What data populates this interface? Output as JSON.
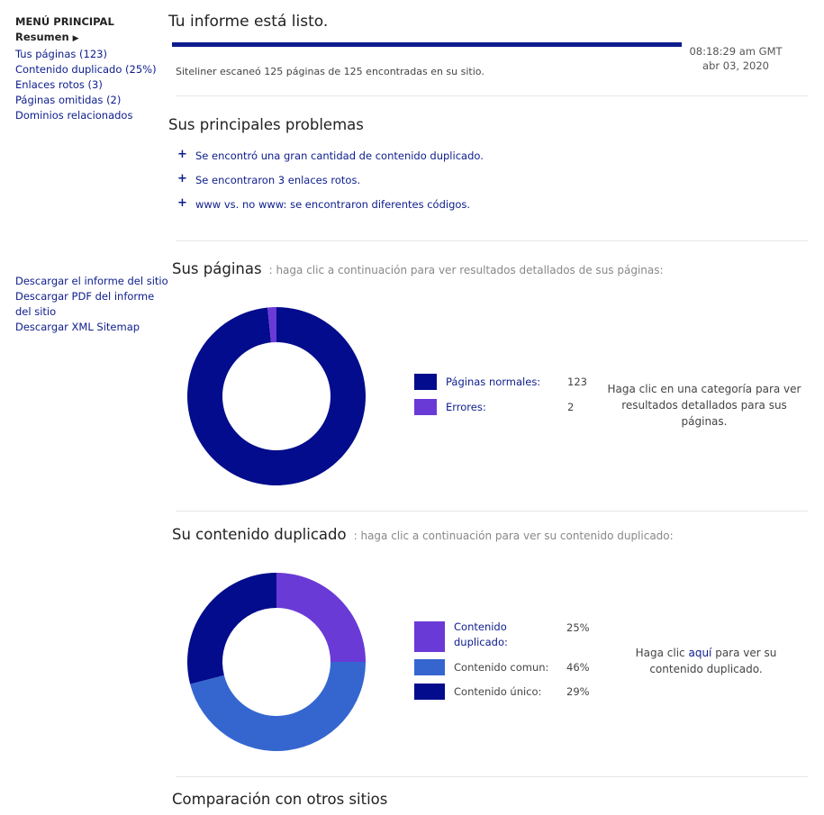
{
  "sidebar": {
    "menu_title": "MENÚ PRINCIPAL",
    "items": [
      {
        "label": "Resumen",
        "active": true
      },
      {
        "label": "Tus páginas (123)"
      },
      {
        "label": "Contenido duplicado (25%)"
      },
      {
        "label": "Enlaces rotos (3)"
      },
      {
        "label": "Páginas omitidas (2)"
      },
      {
        "label": "Dominios relacionados"
      }
    ],
    "downloads": [
      {
        "label": "Descargar el informe del sitio"
      },
      {
        "label": "Descargar PDF del informe del sitio"
      },
      {
        "label": "Descargar XML Sitemap"
      }
    ]
  },
  "report": {
    "title": "Tu informe está listo.",
    "time": "08:18:29 am GMT",
    "date": "abr 03, 2020",
    "scan_text": "Siteliner escaneó 125 páginas de 125 encontradas en su sitio."
  },
  "problems": {
    "title": "Sus principales problemas",
    "items": [
      "Se encontró una gran cantidad de contenido duplicado.",
      "Se encontraron 3 enlaces rotos.",
      "www vs. no www: se encontraron diferentes códigos."
    ]
  },
  "pages": {
    "title": "Sus páginas",
    "hint": ": haga clic a continuación para ver resultados detallados de sus páginas:",
    "legend": [
      {
        "label": "Páginas normales:",
        "value": "123",
        "color": "#020c8c"
      },
      {
        "label": "Errores:",
        "value": "2",
        "color": "#6a3ad6"
      }
    ],
    "cta": "Haga clic en una categoría para ver resultados detallados para sus páginas."
  },
  "duplicate": {
    "title": "Su contenido duplicado",
    "hint": ": haga clic a continuación para ver su contenido duplicado:",
    "legend": [
      {
        "label": "Contenido duplicado:",
        "value": "25%",
        "color": "#6a3ad6"
      },
      {
        "label": "Contenido comun:",
        "value": "46%",
        "color": "#3566d0"
      },
      {
        "label": "Contenido único:",
        "value": "29%",
        "color": "#020c8c"
      }
    ],
    "cta_before": "Haga clic ",
    "cta_link": "aquí",
    "cta_after": " para ver su contenido duplicado."
  },
  "comparison": {
    "title": "Comparación con otros sitios"
  },
  "chart_data": [
    {
      "type": "pie",
      "categories": [
        "Páginas normales",
        "Errores"
      ],
      "values": [
        123,
        2
      ],
      "colors": [
        "#020c8c",
        "#6a3ad6"
      ]
    },
    {
      "type": "pie",
      "categories": [
        "Contenido duplicado",
        "Contenido comun",
        "Contenido único"
      ],
      "values": [
        25,
        46,
        29
      ],
      "colors": [
        "#6a3ad6",
        "#3566d0",
        "#020c8c"
      ]
    }
  ]
}
